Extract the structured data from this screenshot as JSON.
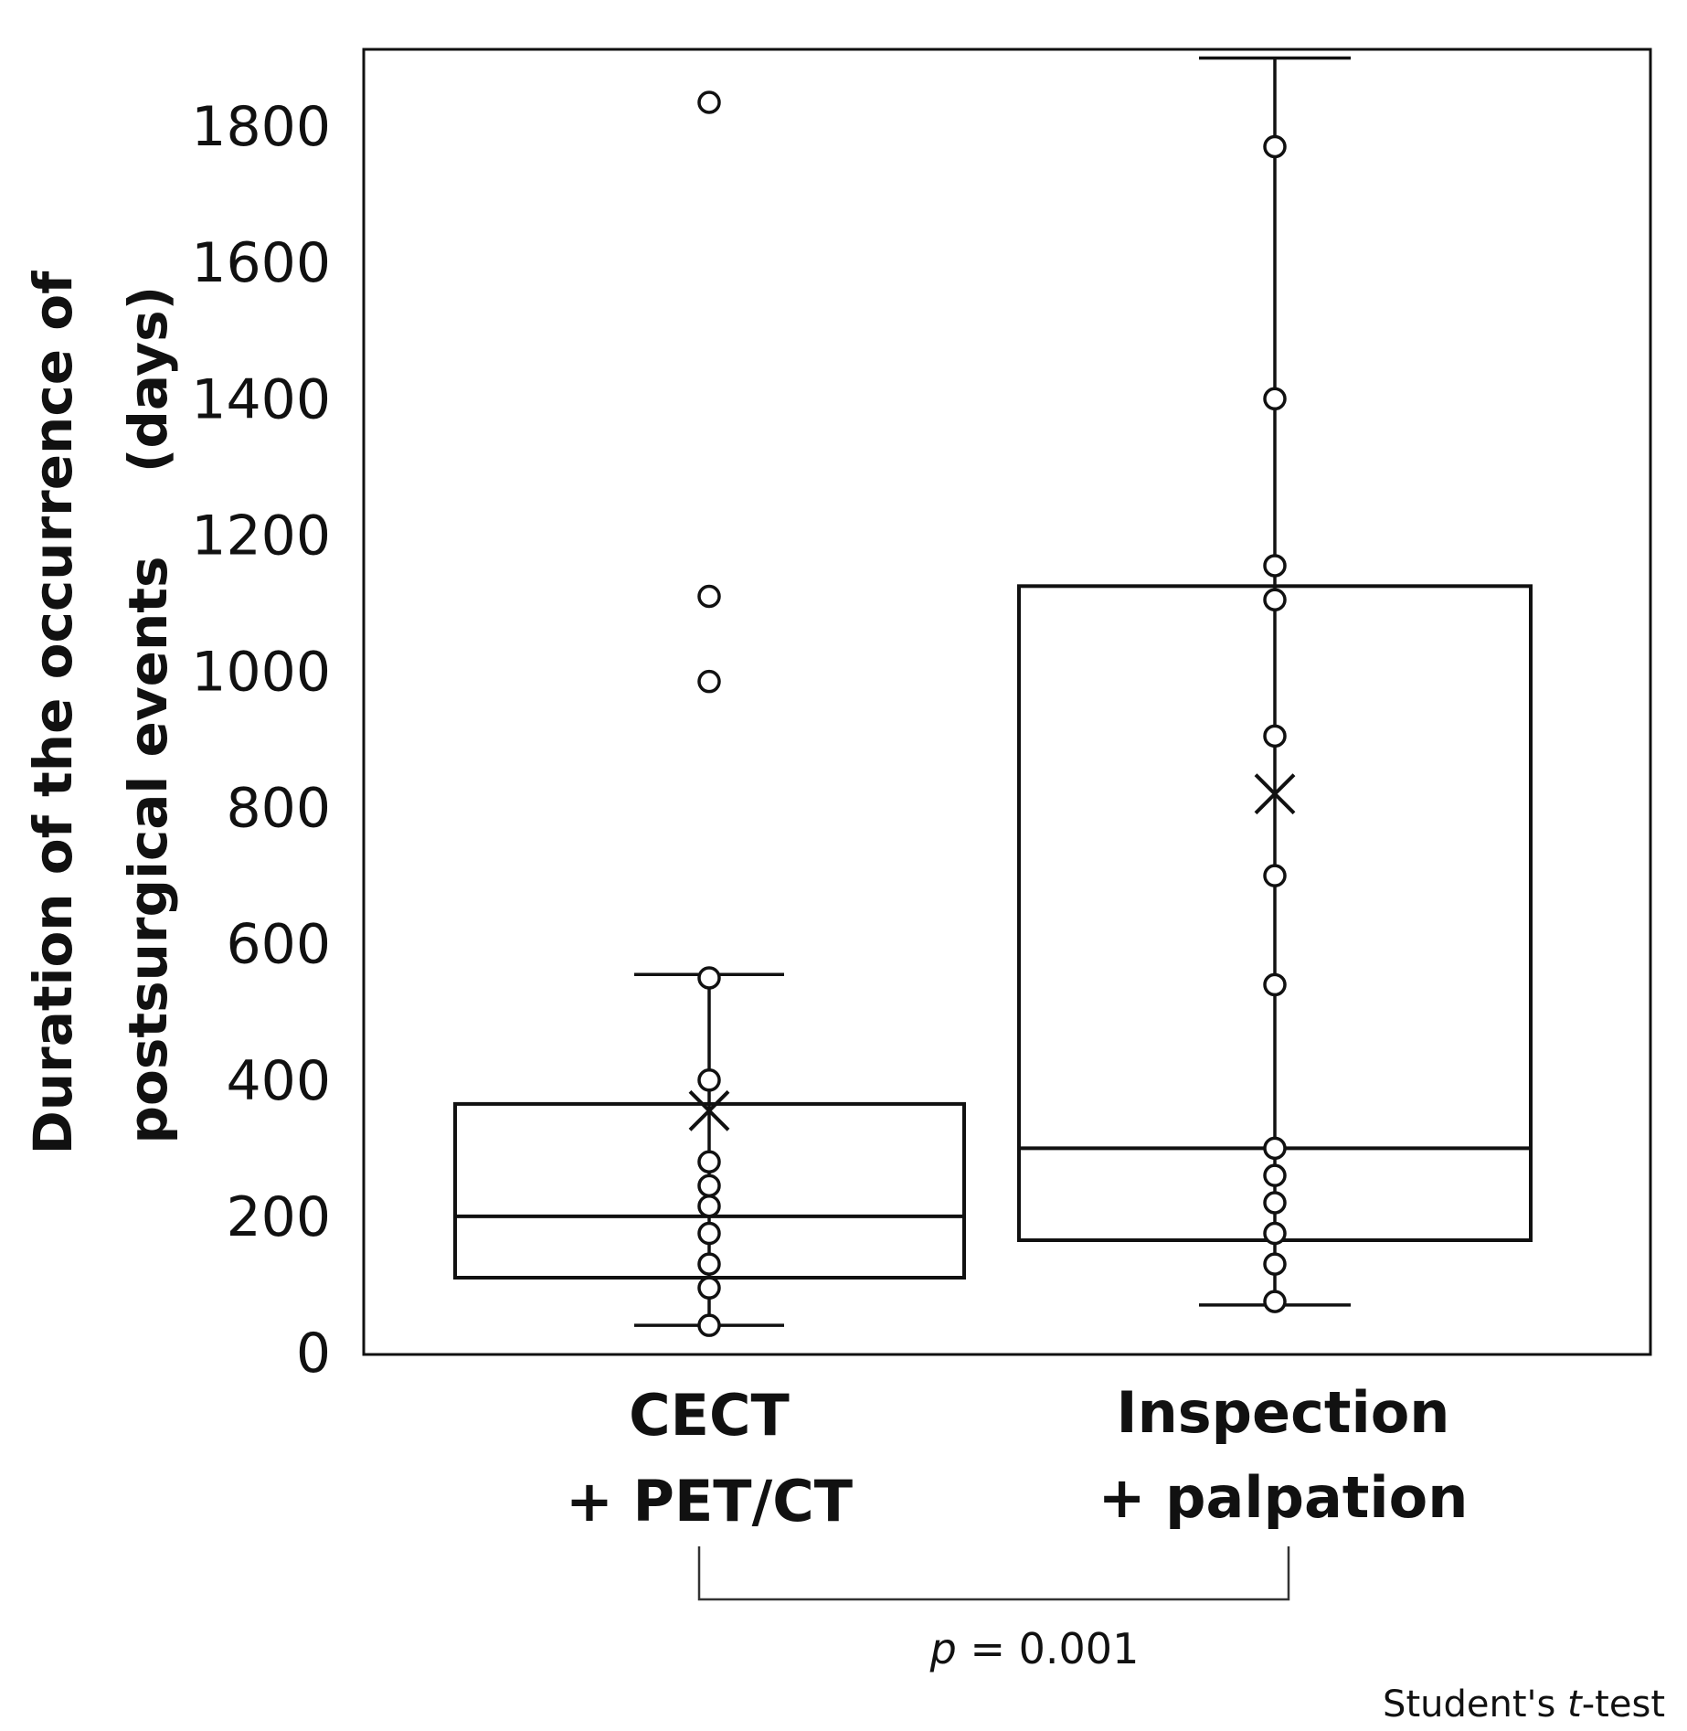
{
  "chart_data": {
    "type": "box",
    "ylabel_line1": "Duration of the occurrence of",
    "ylabel_line2": "postsurgical events",
    "ylabel_unit": "(days)",
    "ylim": [
      0,
      1900
    ],
    "yticks": [
      0,
      200,
      400,
      600,
      800,
      1000,
      1200,
      1400,
      1600,
      1800
    ],
    "groups": [
      {
        "label_line1": "CECT",
        "label_line2": "+ PET/CT",
        "whisker_low": 40,
        "q1": 110,
        "median": 200,
        "q3": 365,
        "whisker_high": 555,
        "mean": 355,
        "points": [
          40,
          95,
          130,
          175,
          215,
          245,
          280,
          400,
          550,
          985,
          1110,
          1835
        ]
      },
      {
        "label_line1": "Inspection",
        "label_line2": "+ palpation",
        "whisker_low": 70,
        "q1": 165,
        "median": 300,
        "q3": 1125,
        "whisker_high": 1900,
        "mean": 820,
        "points": [
          75,
          130,
          175,
          220,
          260,
          300,
          540,
          700,
          905,
          1105,
          1155,
          1400,
          1770
        ]
      }
    ],
    "comparison": {
      "p_symbol": "p",
      "p_rest": " = 0.001",
      "test_prefix": "Student's ",
      "test_italic": "t",
      "test_suffix": "-test"
    }
  }
}
